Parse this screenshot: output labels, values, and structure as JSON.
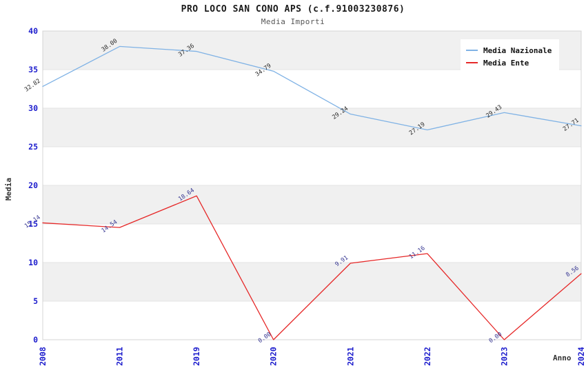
{
  "header": {
    "title": "PRO LOCO SAN CONO APS (c.f.91003230876)",
    "subtitle": "Media Importi"
  },
  "chart_data": {
    "type": "line",
    "title": "PRO LOCO SAN CONO APS (c.f.91003230876)",
    "subtitle": "Media Importi",
    "xlabel": "Anno",
    "ylabel": "Media",
    "categories": [
      "2008",
      "2011",
      "2019",
      "2020",
      "2021",
      "2022",
      "2023",
      "2024"
    ],
    "series": [
      {
        "name": "Media Nazionale",
        "color": "#7fb2e5",
        "label_color": "#2b2b2b",
        "values": [
          32.82,
          38.0,
          37.36,
          34.79,
          29.24,
          27.19,
          29.43,
          27.71
        ]
      },
      {
        "name": "Media Ente",
        "color": "#e62828",
        "label_color": "#373792",
        "values": [
          15.14,
          14.54,
          18.64,
          0.0,
          9.91,
          11.16,
          0.0,
          8.56
        ]
      }
    ],
    "ylim": [
      0,
      40
    ],
    "ytick_step": 5,
    "grid": true,
    "legend_position": "top-right",
    "value_label_decimals": 2,
    "colors": {
      "band_even": "#ffffff",
      "band_odd": "#f0f0f0",
      "grid_line": "#e3e3e3",
      "plot_border": "#d4d4d4",
      "tick_label": "#1d1dcd",
      "axis_text": "#333333"
    }
  }
}
